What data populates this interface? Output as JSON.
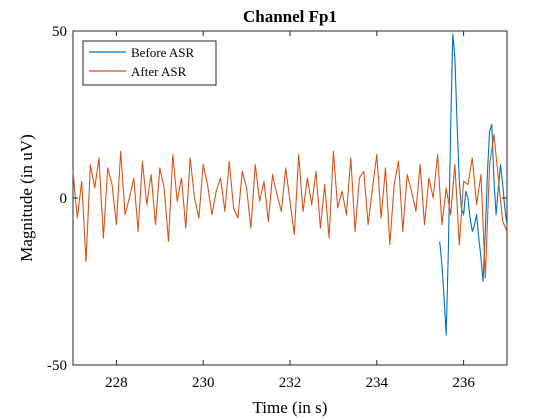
{
  "chart_data": {
    "type": "line",
    "title": "Channel Fp1",
    "xlabel": "Time (in s)",
    "ylabel": "Magnitude (in uV)",
    "xlim": [
      227,
      237
    ],
    "ylim": [
      -50,
      50
    ],
    "xticks": [
      228,
      230,
      232,
      234,
      236
    ],
    "yticks": [
      -50,
      0,
      50
    ],
    "grid": false,
    "legend_position": "top-left",
    "series": [
      {
        "name": "Before ASR",
        "color": "#0072BD",
        "x": [
          235.45,
          235.5,
          235.55,
          235.6,
          235.65,
          235.7,
          235.75,
          235.8,
          235.85,
          235.9,
          235.95,
          236.0,
          236.05,
          236.1,
          236.15,
          236.2,
          236.25,
          236.3,
          236.35,
          236.4,
          236.45,
          236.5,
          236.55,
          236.6,
          236.65,
          236.7,
          236.75,
          236.8,
          236.85,
          236.9,
          236.95,
          237.0
        ],
        "y": [
          -13,
          -20,
          -30,
          -41,
          -15,
          20,
          49,
          42,
          22,
          5,
          -3,
          -5,
          2,
          0,
          -6,
          -10,
          -8,
          -5,
          -12,
          -18,
          -25,
          -10,
          8,
          20,
          22,
          5,
          -5,
          3,
          10,
          4,
          -3,
          -8
        ]
      },
      {
        "name": "After ASR",
        "color": "#D95319",
        "x": [
          227.0,
          227.1,
          227.2,
          227.3,
          227.4,
          227.5,
          227.6,
          227.7,
          227.8,
          227.9,
          228.0,
          228.1,
          228.2,
          228.3,
          228.4,
          228.5,
          228.6,
          228.7,
          228.8,
          228.9,
          229.0,
          229.1,
          229.2,
          229.3,
          229.4,
          229.5,
          229.6,
          229.7,
          229.8,
          229.9,
          230.0,
          230.1,
          230.2,
          230.3,
          230.4,
          230.5,
          230.6,
          230.7,
          230.8,
          230.9,
          231.0,
          231.1,
          231.2,
          231.3,
          231.4,
          231.5,
          231.6,
          231.7,
          231.8,
          231.9,
          232.0,
          232.1,
          232.2,
          232.3,
          232.4,
          232.5,
          232.6,
          232.7,
          232.8,
          232.9,
          233.0,
          233.1,
          233.2,
          233.3,
          233.4,
          233.5,
          233.6,
          233.7,
          233.8,
          233.9,
          234.0,
          234.1,
          234.2,
          234.3,
          234.4,
          234.5,
          234.6,
          234.7,
          234.8,
          234.9,
          235.0,
          235.1,
          235.2,
          235.3,
          235.4,
          235.5,
          235.6,
          235.7,
          235.8,
          235.9,
          236.0,
          236.1,
          236.2,
          236.3,
          236.4,
          236.5,
          236.6,
          236.7,
          236.8,
          236.9,
          237.0
        ],
        "y": [
          8,
          -6,
          5,
          -19,
          10,
          3,
          12,
          -12,
          9,
          4,
          -8,
          14,
          -5,
          0,
          6,
          -10,
          11,
          -2,
          7,
          -8,
          9,
          3,
          -13,
          13,
          -1,
          6,
          -9,
          12,
          0,
          -6,
          10,
          4,
          -5,
          2,
          6,
          -4,
          11,
          -3,
          -6,
          8,
          3,
          -9,
          10,
          -1,
          5,
          -7,
          7,
          1,
          -4,
          9,
          -1,
          -11,
          13,
          -4,
          6,
          -2,
          8,
          -9,
          4,
          -12,
          14,
          -3,
          2,
          -5,
          12,
          -10,
          6,
          8,
          -8,
          3,
          13,
          -6,
          9,
          -14,
          4,
          11,
          -10,
          7,
          2,
          -4,
          10,
          -8,
          6,
          0,
          13,
          -8,
          3,
          -5,
          10,
          -14,
          5,
          4,
          12,
          -2,
          7,
          -24,
          10,
          19,
          6,
          -7,
          -10
        ]
      }
    ]
  }
}
